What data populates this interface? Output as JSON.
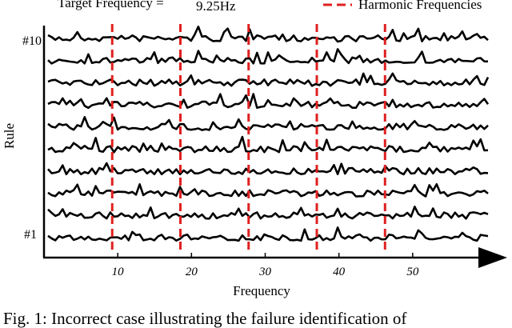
{
  "header": {
    "target_label": "Target Frequency =",
    "target_value": "9.25Hz",
    "legend_label": "Harmonic Frequencies"
  },
  "chart_data": {
    "type": "line",
    "xlabel": "Frequency",
    "ylabel": "Rule",
    "xticks": [
      10,
      20,
      30,
      40,
      50
    ],
    "xlim": [
      0,
      60
    ],
    "row_labels": {
      "top": "#10",
      "bottom": "#1"
    },
    "num_rules": 10,
    "target_frequency": 9.25,
    "harmonics": [
      9.25,
      18.5,
      27.75,
      37.0,
      46.25
    ],
    "harmonic_color": "#e02020",
    "trace_color": "#000000"
  },
  "caption": {
    "text": "Fig. 1: Incorrect case illustrating the failure identification of"
  }
}
